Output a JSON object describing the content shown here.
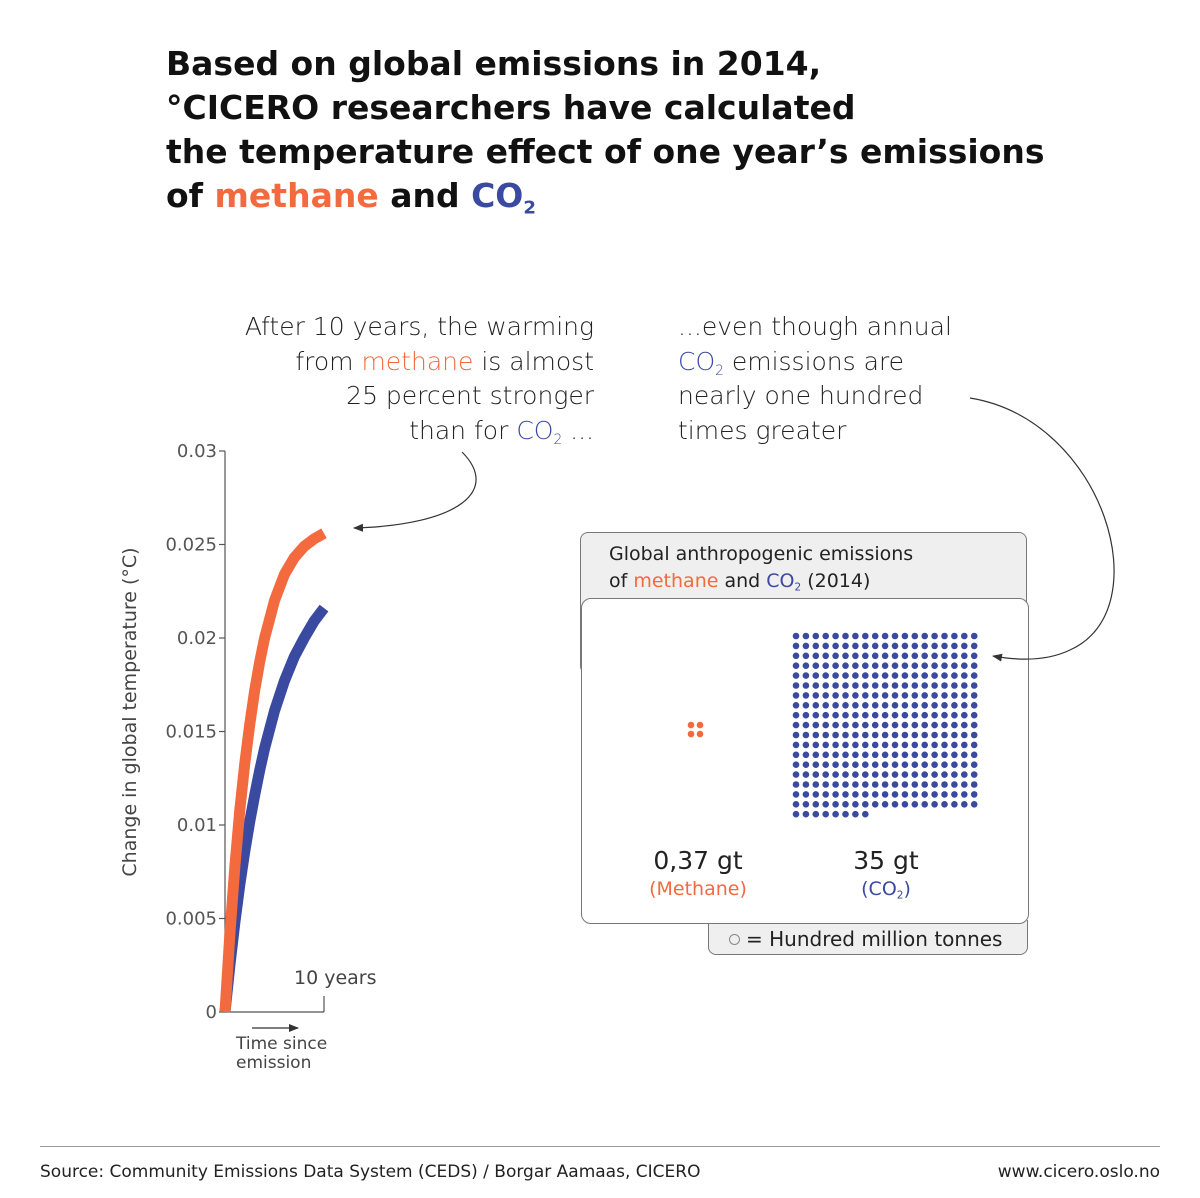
{
  "headline": {
    "line1": "Based on global emissions in 2014,",
    "line2": "°CICERO researchers have calculated",
    "line3": "the temperature effect of one year’s emissions",
    "line4_prefix": "of ",
    "line4_methane": "methane",
    "line4_and": " and ",
    "line4_co": "CO",
    "line4_sub": "2"
  },
  "annotation_left": {
    "l1": "After 10 years, the warming",
    "l2_pre": "from ",
    "l2_methane": "methane",
    "l2_post": " is almost",
    "l3": "25 percent stronger",
    "l4_pre": "than for ",
    "l4_co": "CO",
    "l4_sub": "2",
    "l4_post": " ..."
  },
  "annotation_right": {
    "l1": "...even though annual",
    "l2_co": "CO",
    "l2_sub": "2",
    "l2_post": " emissions are",
    "l3": "nearly one hundred",
    "l4": "times greater"
  },
  "panel": {
    "title_l1": "Global anthropogenic emissions",
    "title_l2_pre": "of ",
    "title_l2_methane": "methane",
    "title_l2_and": " and ",
    "title_l2_co": "CO",
    "title_l2_sub": "2",
    "title_l2_year": " (2014)",
    "methane_amount": "0,37 gt",
    "methane_label": "(Methane)",
    "co2_amount": "35 gt",
    "co2_label_pre": "(CO",
    "co2_label_sub": "2",
    "co2_label_post": ")",
    "legend": "= Hundred million tonnes"
  },
  "colors": {
    "methane": "#f26a3d",
    "co2": "#3a4aa0",
    "axis": "#555555"
  },
  "footer": {
    "source": "Source: Community Emissions Data System (CEDS)  / Borgar Aamaas, CICERO",
    "url": "www.cicero.oslo.no"
  },
  "chart_data": [
    {
      "type": "line",
      "ylabel": "Change in global temperature  (°C)",
      "xlabel_l1": "Time since",
      "xlabel_l2": "emission",
      "x_tick_label": "10 years",
      "x_unit": "years",
      "xlim": [
        0,
        10
      ],
      "ylim": [
        0,
        0.03
      ],
      "y_ticks": [
        "0",
        "0.005",
        "0.01",
        "0.015",
        "0.02",
        "0.025",
        "0.03"
      ],
      "x": [
        0,
        0.5,
        1,
        1.5,
        2,
        2.5,
        3,
        3.5,
        4,
        5,
        6,
        7,
        8,
        9,
        10
      ],
      "series": [
        {
          "key": "methane",
          "values": [
            0,
            0.0042,
            0.0078,
            0.0108,
            0.0133,
            0.0154,
            0.0172,
            0.0187,
            0.02,
            0.022,
            0.0234,
            0.0243,
            0.0249,
            0.0253,
            0.0256
          ]
        },
        {
          "key": "co2",
          "values": [
            0,
            0.0025,
            0.0048,
            0.0068,
            0.0086,
            0.0102,
            0.0116,
            0.0129,
            0.0141,
            0.0161,
            0.0177,
            0.019,
            0.02,
            0.0209,
            0.0216
          ]
        }
      ]
    },
    {
      "type": "scatter",
      "unit": "hundred million tonnes",
      "series": [
        {
          "key": "methane",
          "dots": 4
        },
        {
          "key": "co2",
          "dots": 350
        }
      ]
    }
  ]
}
